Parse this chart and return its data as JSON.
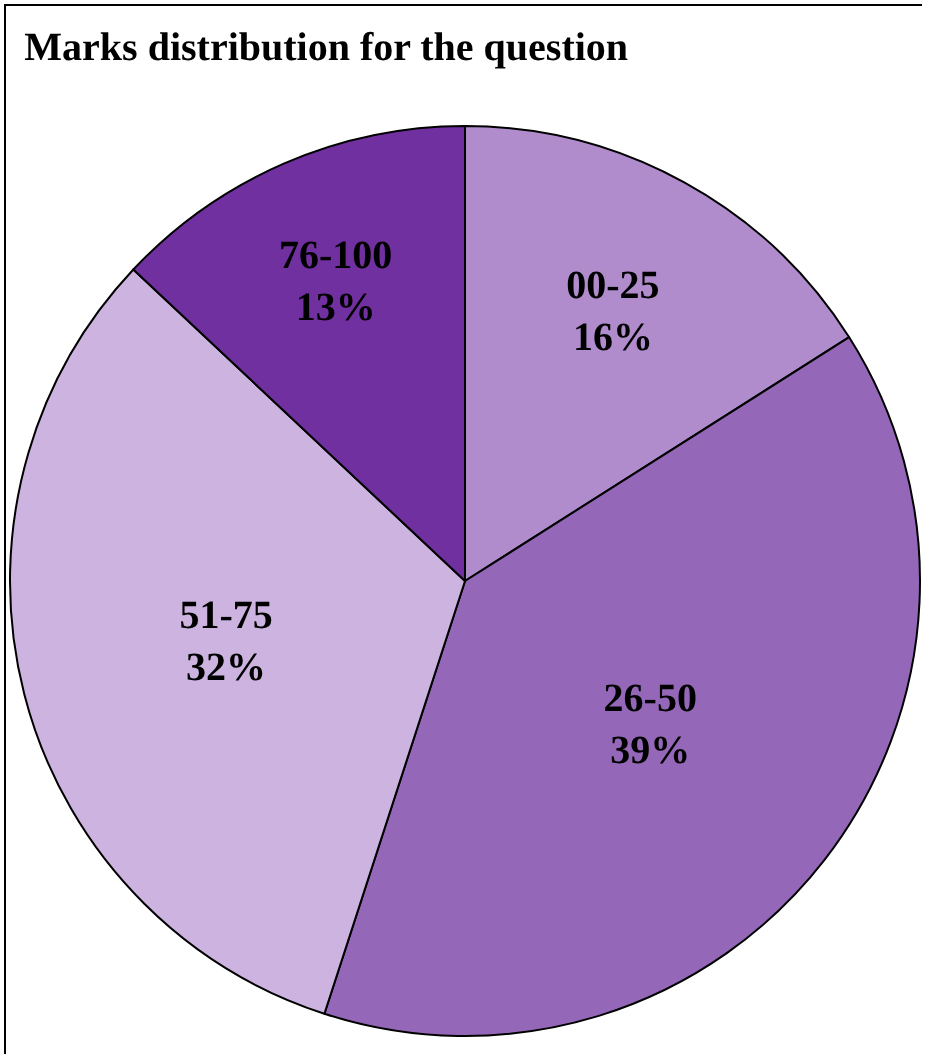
{
  "chart_data": {
    "type": "pie",
    "title": "Marks distribution for the question",
    "categories": [
      "00-25",
      "26-50",
      "51-75",
      "76-100"
    ],
    "values": [
      16,
      39,
      32,
      13
    ],
    "colors": [
      "#b08ccc",
      "#9467b8",
      "#cdb4e0",
      "#7030a0"
    ],
    "value_labels": [
      "16%",
      "39%",
      "32%",
      "13%"
    ],
    "legend": false
  }
}
